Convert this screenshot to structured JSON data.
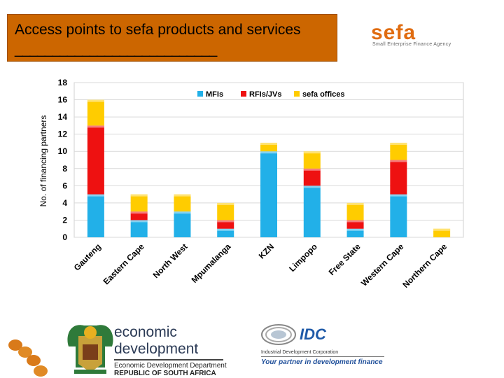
{
  "slide": {
    "title": "Access points to sefa products and services",
    "title_underline": "___________________________"
  },
  "sefa_logo": {
    "name": "sefa",
    "subtitle": "Small Enterprise Finance Agency"
  },
  "chart_data": {
    "type": "bar",
    "stacked": true,
    "title": "",
    "xlabel": "",
    "ylabel": "No. of financing partners",
    "ylim": [
      0,
      18
    ],
    "yticks": [
      0,
      2,
      4,
      6,
      8,
      10,
      12,
      14,
      16,
      18
    ],
    "grid": true,
    "legend_position": "top-right",
    "categories": [
      "Gauteng",
      "Eastern Cape",
      "North West",
      "Mpumalanga",
      "KZN",
      "Limpopo",
      "Free State",
      "Western Cape",
      "Northern Cape"
    ],
    "series": [
      {
        "name": "MFIs",
        "color": "#22b0e8",
        "values": [
          5,
          2,
          3,
          1,
          10,
          6,
          1,
          5,
          0
        ]
      },
      {
        "name": "RFIs/JVs",
        "color": "#ee1111",
        "values": [
          8,
          1,
          0,
          1,
          0,
          2,
          1,
          4,
          0
        ]
      },
      {
        "name": "sefa offices",
        "color": "#ffcc00",
        "values": [
          3,
          2,
          2,
          2,
          1,
          2,
          2,
          2,
          1
        ]
      }
    ]
  },
  "footer": {
    "ed_line1": "economic",
    "ed_line2": "development",
    "ed_dept": "Economic Development Department",
    "ed_country": "REPUBLIC OF SOUTH AFRICA",
    "idc_name": "IDC",
    "idc_full": "Industrial Development Corporation",
    "idc_tagline": "Your partner in development finance"
  }
}
